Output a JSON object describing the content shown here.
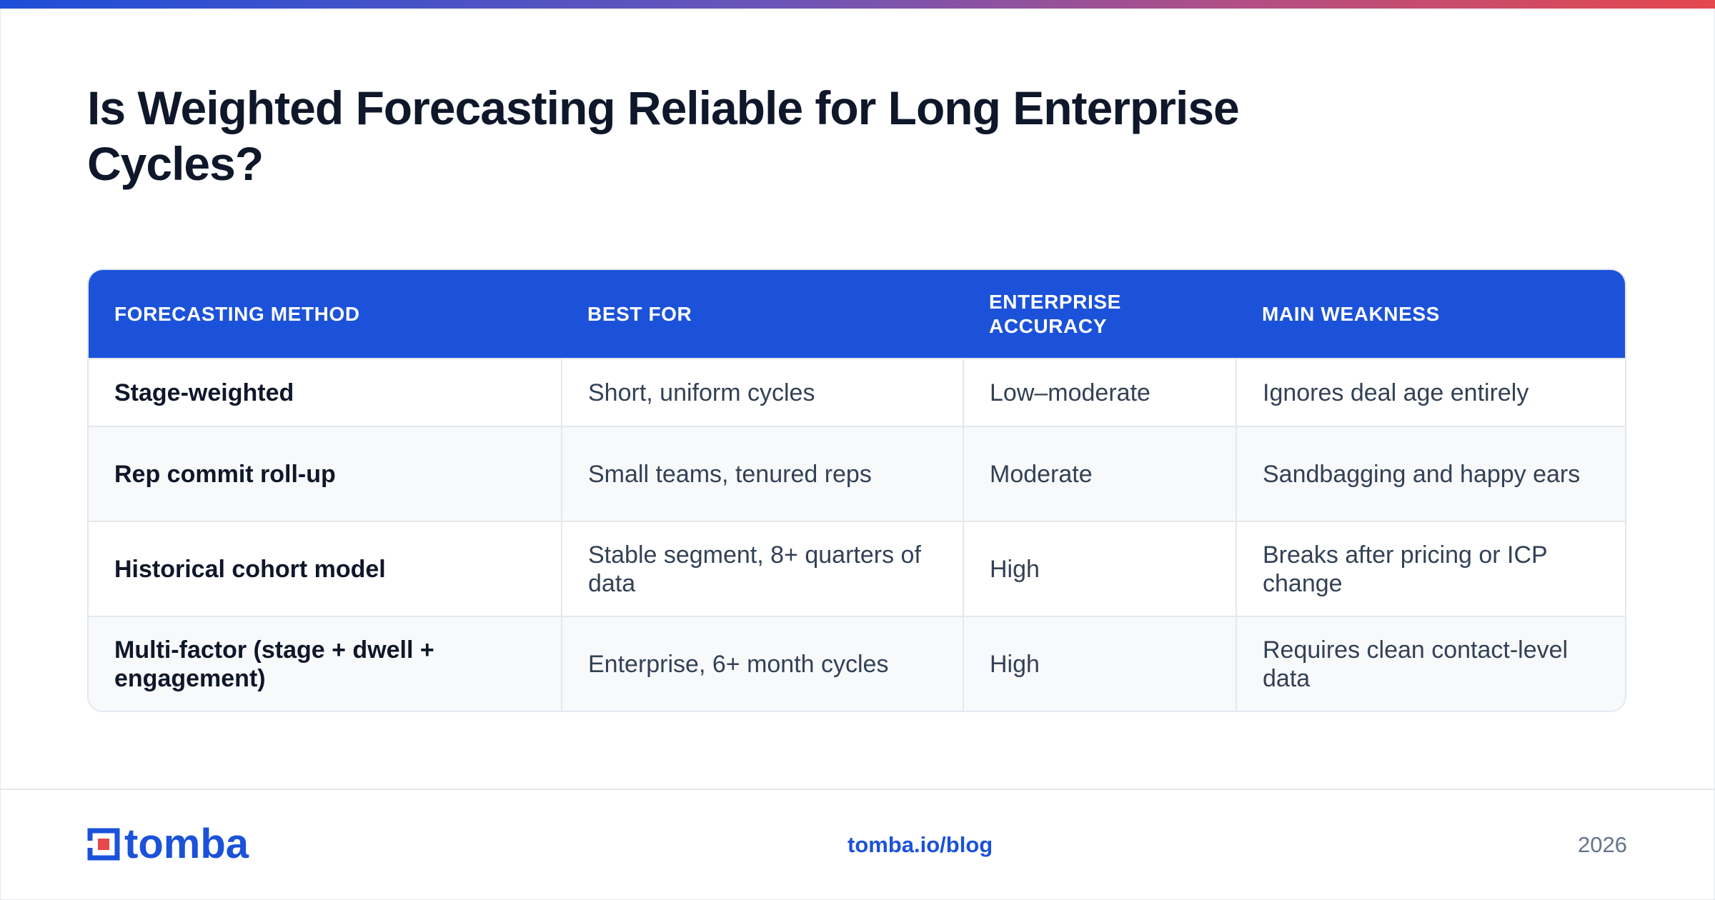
{
  "title": "Is Weighted Forecasting Reliable for Long Enterprise Cycles?",
  "table": {
    "headers": [
      "FORECASTING METHOD",
      "BEST FOR",
      "ENTERPRISE ACCURACY",
      "MAIN WEAKNESS"
    ],
    "rows": [
      [
        "Stage-weighted",
        "Short, uniform cycles",
        "Low–moderate",
        "Ignores deal age entirely"
      ],
      [
        "Rep commit roll-up",
        "Small teams, tenured reps",
        "Moderate",
        "Sandbagging and happy ears"
      ],
      [
        "Historical cohort model",
        "Stable segment, 8+ quarters of data",
        "High",
        "Breaks after pricing or ICP change"
      ],
      [
        "Multi-factor (stage + dwell + engagement)",
        "Enterprise, 6+ month cycles",
        "High",
        "Requires clean contact-level data"
      ]
    ]
  },
  "footer": {
    "logo_text": "tomba",
    "logo_icon": "tomba-logo-icon",
    "link": "tomba.io/blog",
    "year": "2026"
  },
  "colors": {
    "brand_blue": "#1b52d9",
    "accent_red": "#e5484d",
    "title_text": "#0f172a"
  }
}
